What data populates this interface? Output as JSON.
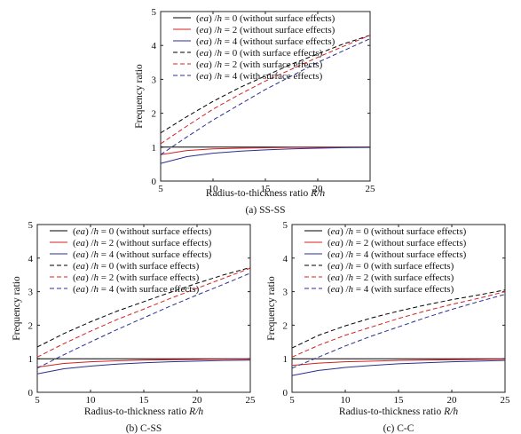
{
  "chart_data": [
    {
      "type": "line",
      "caption": "(a) SS-SS",
      "xlabel": "Radius-to-thickness ratio R/h",
      "ylabel": "Frequency ratio",
      "xlim": [
        5,
        25
      ],
      "ylim": [
        0,
        5
      ],
      "xticks": [
        5,
        10,
        15,
        20,
        25
      ],
      "yticks": [
        0,
        1,
        2,
        3,
        4,
        5
      ],
      "grid": false,
      "legend_position": "top",
      "series": [
        {
          "name": "(ea) /h = 0 (without surface effects)",
          "color": "#000000",
          "dash": "solid",
          "x": [
            5,
            7.5,
            10,
            12.5,
            15,
            17.5,
            20,
            22.5,
            25
          ],
          "y": [
            1.0,
            1.0,
            1.0,
            1.0,
            1.0,
            1.0,
            1.0,
            1.0,
            1.0
          ]
        },
        {
          "name": "(ea) /h = 2 (without surface effects)",
          "color": "#d42020",
          "dash": "solid",
          "x": [
            5,
            7.5,
            10,
            12.5,
            15,
            17.5,
            20,
            22.5,
            25
          ],
          "y": [
            0.78,
            0.9,
            0.95,
            0.97,
            0.98,
            0.99,
            0.99,
            0.995,
            1.0
          ]
        },
        {
          "name": "(ea) /h = 4 (without surface effects)",
          "color": "#2a2f8f",
          "dash": "solid",
          "x": [
            5,
            7.5,
            10,
            12.5,
            15,
            17.5,
            20,
            22.5,
            25
          ],
          "y": [
            0.52,
            0.72,
            0.82,
            0.88,
            0.92,
            0.95,
            0.97,
            0.985,
            0.99
          ]
        },
        {
          "name": "(ea) /h = 0 (with surface effects)",
          "color": "#000000",
          "dash": "dashed",
          "x": [
            5,
            7.5,
            10,
            12.5,
            15,
            17.5,
            20,
            22.5,
            25
          ],
          "y": [
            1.42,
            1.9,
            2.35,
            2.75,
            3.1,
            3.45,
            3.75,
            4.05,
            4.3
          ]
        },
        {
          "name": "(ea) /h = 2 (with surface effects)",
          "color": "#d42020",
          "dash": "dashed",
          "x": [
            5,
            7.5,
            10,
            12.5,
            15,
            17.5,
            20,
            22.5,
            25
          ],
          "y": [
            1.1,
            1.62,
            2.12,
            2.55,
            2.95,
            3.3,
            3.65,
            3.98,
            4.3
          ]
        },
        {
          "name": "(ea) /h = 4 (with surface effects)",
          "color": "#2a2f8f",
          "dash": "dashed",
          "x": [
            5,
            7.5,
            10,
            12.5,
            15,
            17.5,
            20,
            22.5,
            25
          ],
          "y": [
            0.78,
            1.3,
            1.8,
            2.25,
            2.7,
            3.1,
            3.5,
            3.85,
            4.2
          ]
        }
      ]
    },
    {
      "type": "line",
      "caption": "(b) C-SS",
      "xlabel": "Radius-to-thickness ratio R/h",
      "ylabel": "Frequency ratio",
      "xlim": [
        5,
        25
      ],
      "ylim": [
        0,
        5
      ],
      "xticks": [
        5,
        10,
        15,
        20,
        25
      ],
      "yticks": [
        0,
        1,
        2,
        3,
        4,
        5
      ],
      "grid": false,
      "legend_position": "top",
      "series": [
        {
          "name": "(ea) /h = 0 (without surface effects)",
          "color": "#000000",
          "dash": "solid",
          "x": [
            5,
            7.5,
            10,
            12.5,
            15,
            17.5,
            20,
            22.5,
            25
          ],
          "y": [
            1.0,
            1.0,
            1.0,
            1.0,
            1.0,
            1.0,
            1.0,
            1.0,
            1.0
          ]
        },
        {
          "name": "(ea) /h = 2 (without surface effects)",
          "color": "#d42020",
          "dash": "solid",
          "x": [
            5,
            7.5,
            10,
            12.5,
            15,
            17.5,
            20,
            22.5,
            25
          ],
          "y": [
            0.75,
            0.86,
            0.91,
            0.94,
            0.96,
            0.97,
            0.98,
            0.99,
            0.99
          ]
        },
        {
          "name": "(ea) /h = 4 (without surface effects)",
          "color": "#2a2f8f",
          "dash": "solid",
          "x": [
            5,
            7.5,
            10,
            12.5,
            15,
            17.5,
            20,
            22.5,
            25
          ],
          "y": [
            0.55,
            0.7,
            0.78,
            0.84,
            0.88,
            0.91,
            0.93,
            0.95,
            0.96
          ]
        },
        {
          "name": "(ea) /h = 0 (with surface effects)",
          "color": "#000000",
          "dash": "dashed",
          "x": [
            5,
            7.5,
            10,
            12.5,
            15,
            17.5,
            20,
            22.5,
            25
          ],
          "y": [
            1.35,
            1.75,
            2.1,
            2.42,
            2.7,
            2.98,
            3.25,
            3.5,
            3.72
          ]
        },
        {
          "name": "(ea) /h = 2 (with surface effects)",
          "color": "#d42020",
          "dash": "dashed",
          "x": [
            5,
            7.5,
            10,
            12.5,
            15,
            17.5,
            20,
            22.5,
            25
          ],
          "y": [
            1.05,
            1.45,
            1.82,
            2.17,
            2.48,
            2.8,
            3.1,
            3.4,
            3.7
          ]
        },
        {
          "name": "(ea) /h = 4 (with surface effects)",
          "color": "#2a2f8f",
          "dash": "dashed",
          "x": [
            5,
            7.5,
            10,
            12.5,
            15,
            17.5,
            20,
            22.5,
            25
          ],
          "y": [
            0.72,
            1.12,
            1.5,
            1.87,
            2.22,
            2.57,
            2.9,
            3.22,
            3.55
          ]
        }
      ]
    },
    {
      "type": "line",
      "caption": "(c) C-C",
      "xlabel": "Radius-to-thickness ratio R/h",
      "ylabel": "Frequency ratio",
      "xlim": [
        5,
        25
      ],
      "ylim": [
        0,
        5
      ],
      "xticks": [
        5,
        10,
        15,
        20,
        25
      ],
      "yticks": [
        0,
        1,
        2,
        3,
        4,
        5
      ],
      "grid": false,
      "legend_position": "top",
      "series": [
        {
          "name": "(ea) /h = 0 (without surface effects)",
          "color": "#000000",
          "dash": "solid",
          "x": [
            5,
            7.5,
            10,
            12.5,
            15,
            17.5,
            20,
            22.5,
            25
          ],
          "y": [
            1.0,
            1.0,
            1.0,
            1.0,
            1.0,
            1.0,
            1.0,
            1.0,
            1.0
          ]
        },
        {
          "name": "(ea) /h = 2 (without surface effects)",
          "color": "#d42020",
          "dash": "solid",
          "x": [
            5,
            7.5,
            10,
            12.5,
            15,
            17.5,
            20,
            22.5,
            25
          ],
          "y": [
            0.8,
            0.87,
            0.91,
            0.93,
            0.95,
            0.96,
            0.97,
            0.98,
            0.99
          ]
        },
        {
          "name": "(ea) /h = 4 (without surface effects)",
          "color": "#2a2f8f",
          "dash": "solid",
          "x": [
            5,
            7.5,
            10,
            12.5,
            15,
            17.5,
            20,
            22.5,
            25
          ],
          "y": [
            0.5,
            0.65,
            0.74,
            0.8,
            0.85,
            0.88,
            0.91,
            0.93,
            0.95
          ]
        },
        {
          "name": "(ea) /h = 0 (with surface effects)",
          "color": "#000000",
          "dash": "dashed",
          "x": [
            5,
            7.5,
            10,
            12.5,
            15,
            17.5,
            20,
            22.5,
            25
          ],
          "y": [
            1.32,
            1.7,
            1.98,
            2.22,
            2.42,
            2.6,
            2.76,
            2.9,
            3.05
          ]
        },
        {
          "name": "(ea) /h = 2 (with surface effects)",
          "color": "#d42020",
          "dash": "dashed",
          "x": [
            5,
            7.5,
            10,
            12.5,
            15,
            17.5,
            20,
            22.5,
            25
          ],
          "y": [
            1.05,
            1.4,
            1.7,
            1.95,
            2.2,
            2.42,
            2.62,
            2.8,
            3.0
          ]
        },
        {
          "name": "(ea) /h = 4 (with surface effects)",
          "color": "#2a2f8f",
          "dash": "dashed",
          "x": [
            5,
            7.5,
            10,
            12.5,
            15,
            17.5,
            20,
            22.5,
            25
          ],
          "y": [
            0.72,
            1.05,
            1.38,
            1.68,
            1.95,
            2.22,
            2.47,
            2.7,
            2.92
          ]
        }
      ]
    }
  ]
}
